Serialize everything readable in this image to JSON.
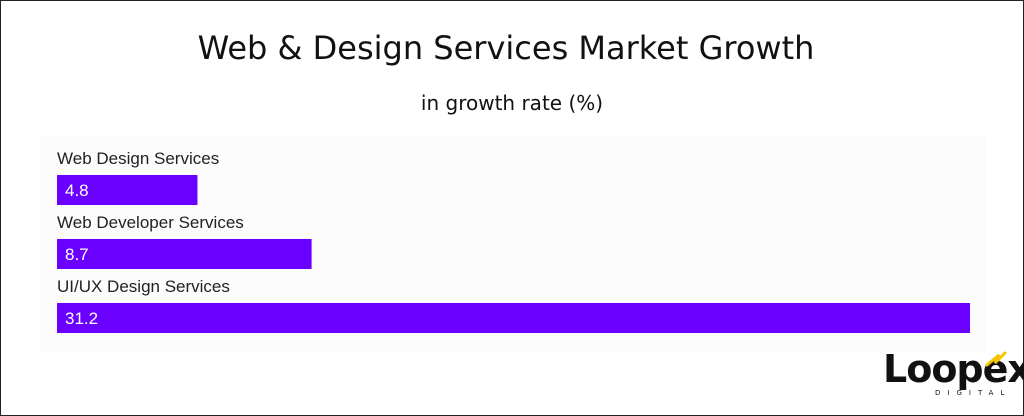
{
  "chart_data": {
    "type": "bar",
    "orientation": "horizontal",
    "title": "Web & Design Services Market Growth",
    "subtitle": "in growth rate (%)",
    "categories": [
      "Web Design Services",
      "Web Developer Services",
      "UI/UX Design Services"
    ],
    "values": [
      4.8,
      8.7,
      31.2
    ],
    "data_labels": [
      "4.8",
      "8.7",
      "31.2"
    ],
    "xlim": [
      0,
      31.2
    ],
    "grid": false,
    "legend": "none",
    "bar_color": "#6a00ff",
    "label_color": "#ffffff"
  },
  "branding": {
    "logo_text": "Loopex",
    "logo_subtext": "DIGITAL",
    "logo_accent": "#f5c400"
  }
}
